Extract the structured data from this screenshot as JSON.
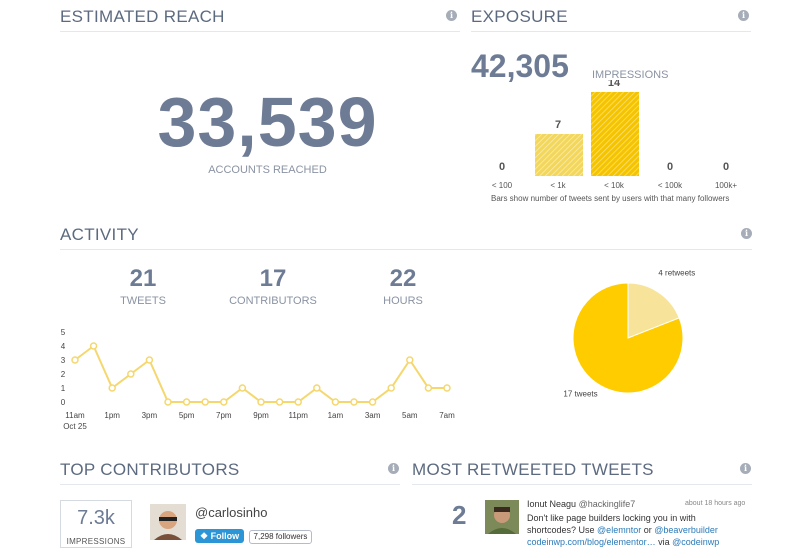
{
  "estimated_reach": {
    "title": "ESTIMATED REACH",
    "value": "33,539",
    "label": "ACCOUNTS REACHED"
  },
  "exposure": {
    "title": "EXPOSURE",
    "impressions_value": "42,305",
    "impressions_label": "IMPRESSIONS",
    "note": "Bars show number of tweets sent by users with that many followers",
    "chart_data": {
      "type": "bar",
      "categories": [
        "< 100",
        "< 1k",
        "< 10k",
        "< 100k",
        "100k+"
      ],
      "values": [
        0,
        7,
        14,
        0,
        0
      ],
      "ylim": [
        0,
        14
      ]
    }
  },
  "activity": {
    "title": "ACTIVITY",
    "stats": [
      {
        "value": "21",
        "label": "TWEETS"
      },
      {
        "value": "17",
        "label": "CONTRIBUTORS"
      },
      {
        "value": "22",
        "label": "HOURS"
      }
    ],
    "line_chart": {
      "type": "line",
      "y_ticks": [
        "5",
        "4",
        "3",
        "2",
        "1",
        "0"
      ],
      "ylim": [
        0,
        5
      ],
      "x_tick_labels": [
        "11am",
        "1pm",
        "3pm",
        "5pm",
        "7pm",
        "9pm",
        "11pm",
        "1am",
        "3am",
        "5am",
        "7am"
      ],
      "x_sub_label": "Oct 25",
      "values": [
        3,
        4,
        1,
        2,
        3,
        0,
        0,
        0,
        0,
        1,
        0,
        0,
        0,
        1,
        0,
        0,
        0,
        1,
        3,
        1,
        1
      ],
      "color": "#f5d76e"
    },
    "pie_chart": {
      "type": "pie",
      "slices": [
        {
          "label": "4 retweets",
          "value": 4,
          "color": "#f7e49a"
        },
        {
          "label": "17 tweets",
          "value": 17,
          "color": "#ffcc00"
        }
      ]
    }
  },
  "top_contributors": {
    "title": "TOP CONTRIBUTORS",
    "impressions_value": "7.3k",
    "impressions_label": "IMPRESSIONS",
    "handle": "@carlosinho",
    "follow_label": "Follow",
    "followers": "7,298 followers"
  },
  "most_retweeted": {
    "title": "MOST RETWEETED TWEETS",
    "count": "2",
    "author_name": "Ionut Neagu",
    "author_handle": "@hackinglife7",
    "time": "about 18 hours ago",
    "text_1": "Don't like page builders locking you in with",
    "text_2a": "shortcodes? Use ",
    "mention_1": "@elemntor",
    "text_2b": " or ",
    "mention_2": "@beaverbuilder",
    "link": "codeinwp.com/blog/elementor…",
    "text_3b": " via ",
    "mention_3": "@codeinwp"
  },
  "colors": {
    "accent_yellow": "#ffcc00",
    "light_yellow": "#f5d76e",
    "text_blue_gray": "#6d7b94"
  }
}
